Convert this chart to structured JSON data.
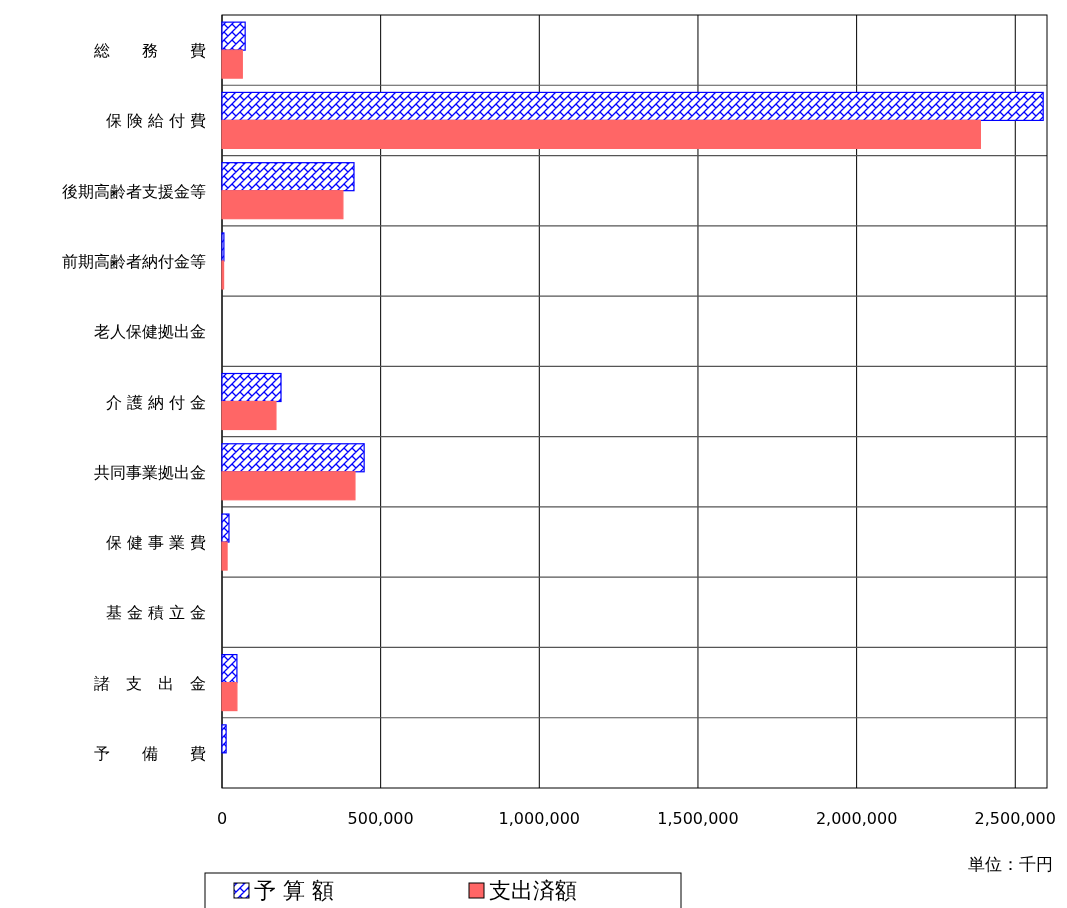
{
  "chart_data": {
    "type": "bar",
    "orientation": "horizontal",
    "categories": [
      "総　　務　　費",
      "保 険 給 付 費",
      "後期高齢者支援金等",
      "前期高齢者納付金等",
      "老人保健拠出金",
      "介 護 納 付 金",
      "共同事業拠出金",
      "保 健 事 業 費",
      "基 金 積 立 金",
      "諸　支　出　金",
      "予　　備　　費"
    ],
    "series": [
      {
        "name": "予 算 額",
        "color": "#0000ff",
        "values": [
          73000,
          2588000,
          416000,
          6000,
          0,
          186000,
          448000,
          22000,
          0,
          47000,
          13000
        ]
      },
      {
        "name": "支出済額",
        "color": "#ff6666",
        "values": [
          64000,
          2390000,
          381000,
          5000,
          0,
          170000,
          419000,
          16000,
          0,
          47000,
          0
        ]
      }
    ],
    "xlim": [
      0,
      2600000
    ],
    "xticks": [
      0,
      {
        "value": 500000,
        "label": "500,000"
      },
      {
        "value": 1000000,
        "label": "1,000,000"
      },
      {
        "value": 1500000,
        "label": "1,500,000"
      },
      {
        "value": 2000000,
        "label": "2,000,000"
      },
      {
        "value": 2500000,
        "label": "2,500,000"
      }
    ],
    "grid": true,
    "legend": "bottom",
    "annotations": [
      "単位：千円"
    ]
  }
}
